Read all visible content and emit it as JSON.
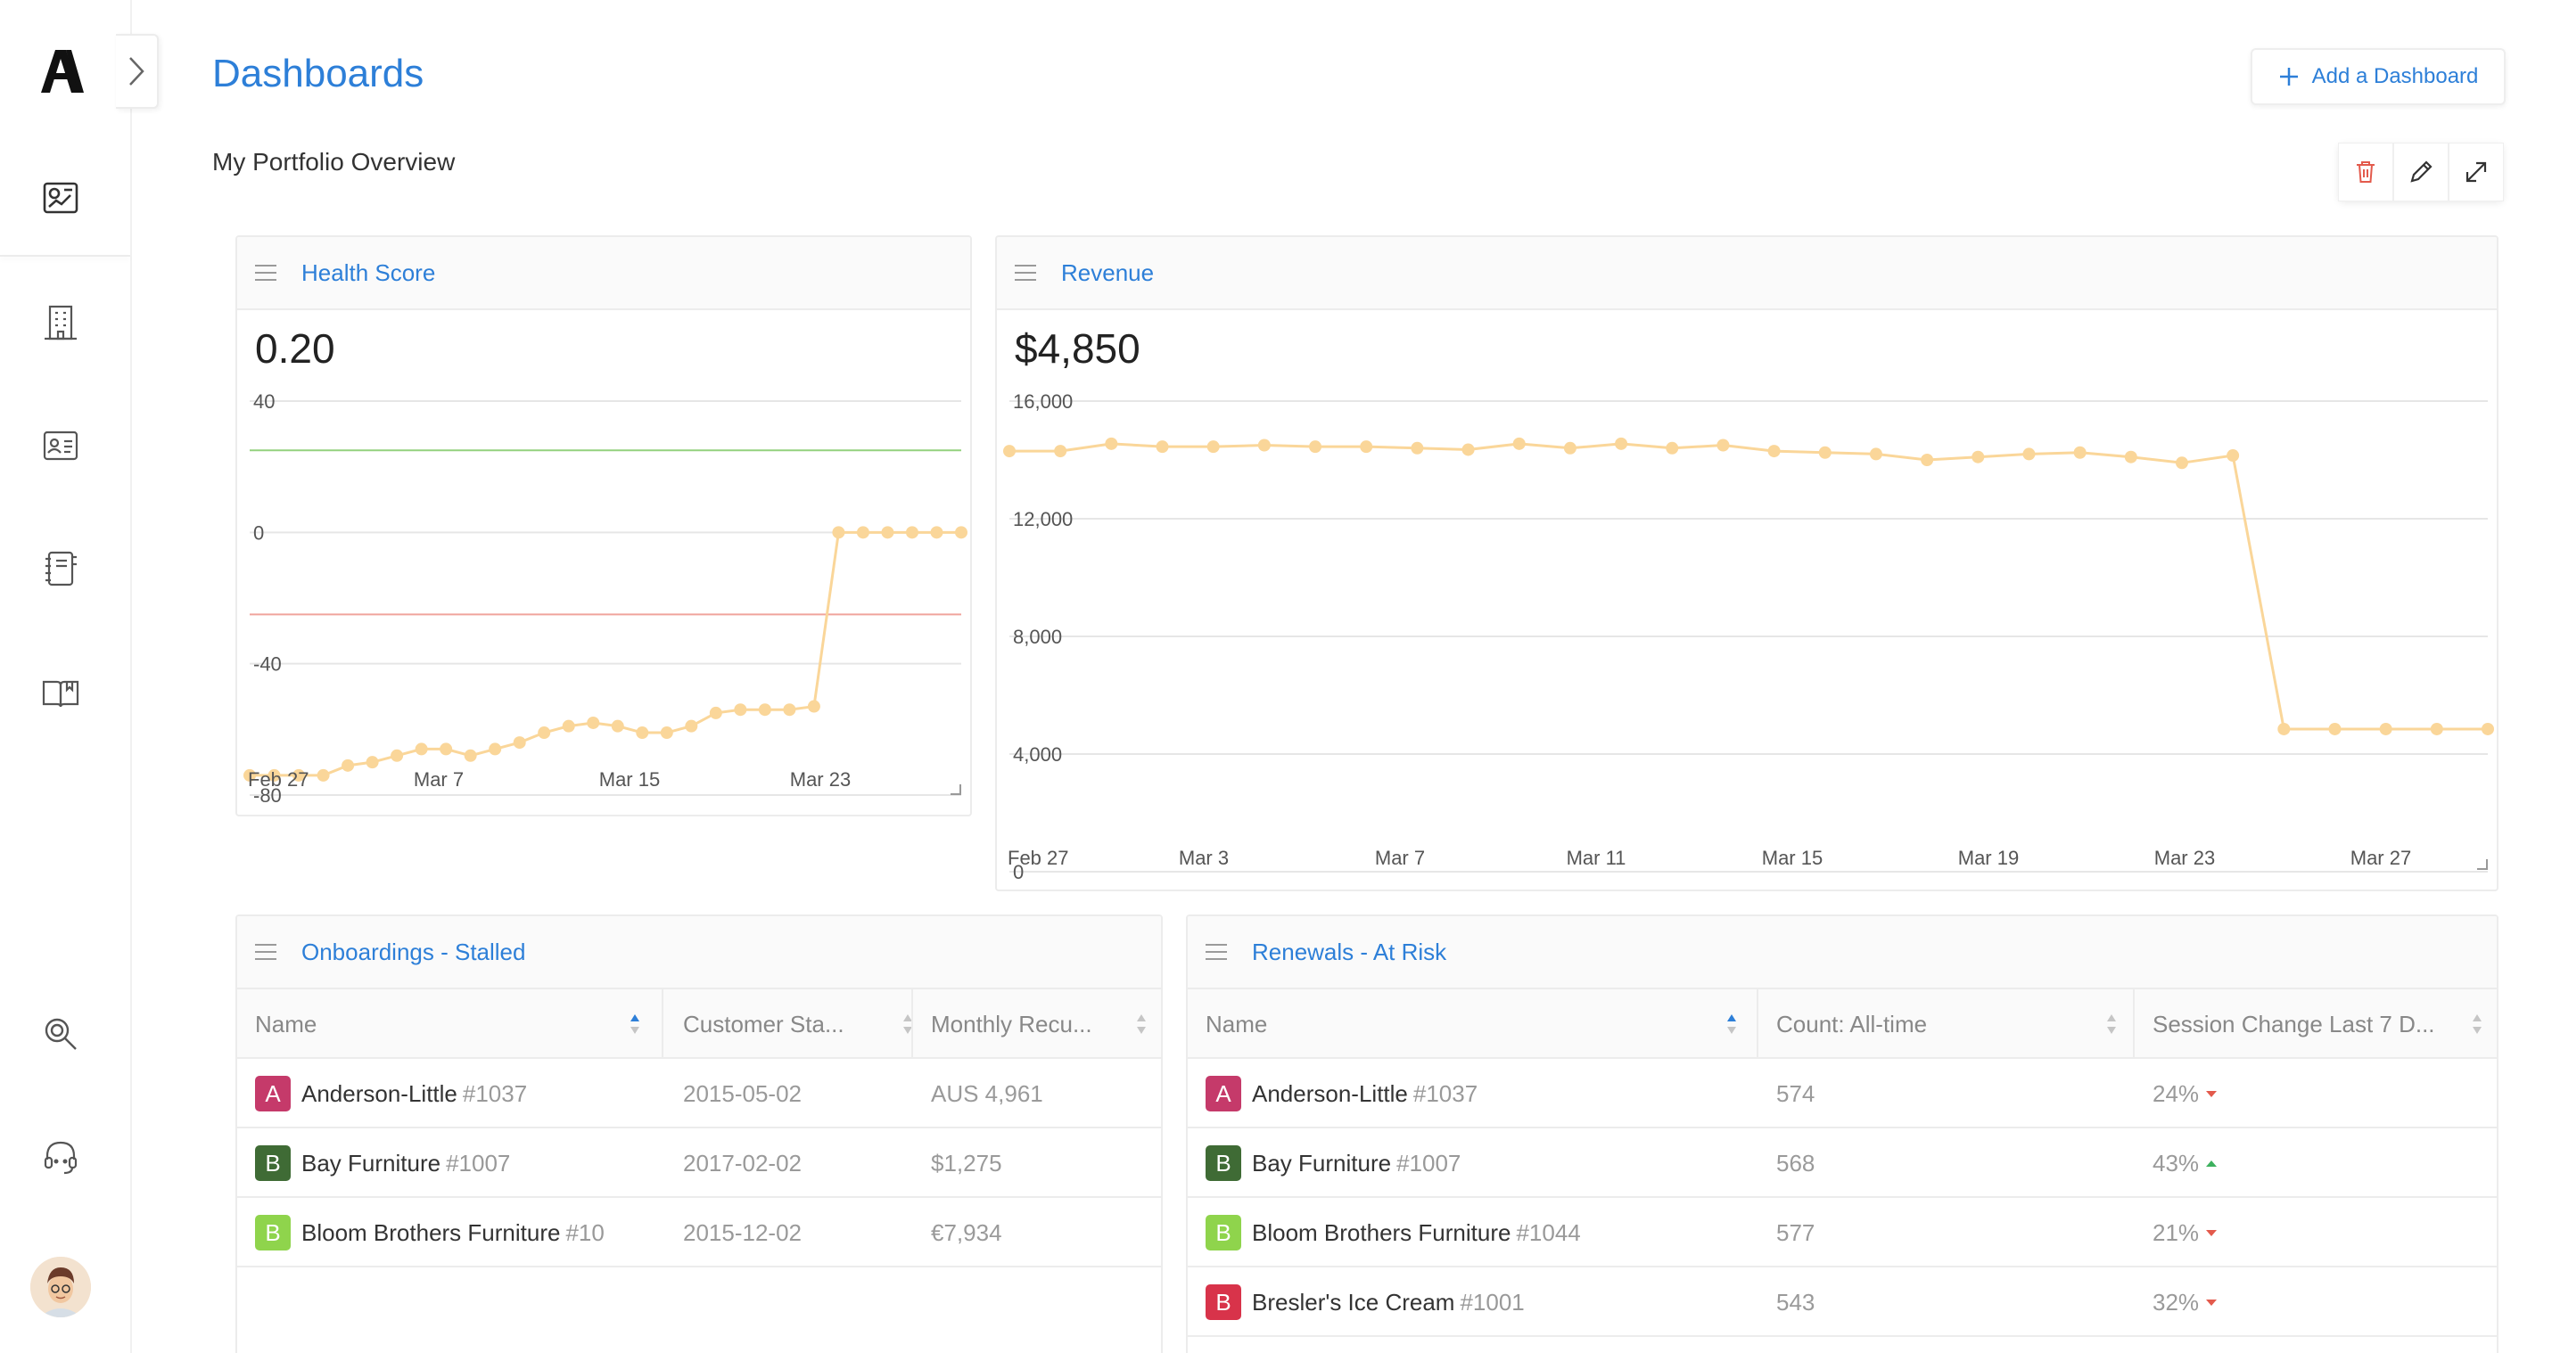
{
  "sidebar": {
    "logo": "letter-a-logo",
    "icons": [
      "dashboard-icon",
      "building-icon",
      "contact-card-icon",
      "notebook-icon",
      "book-icon",
      "search-icon",
      "support-headset-icon"
    ]
  },
  "header": {
    "title": "Dashboards",
    "add_button": "Add a Dashboard",
    "subtitle": "My Portfolio Overview"
  },
  "toolbar": {
    "icons": [
      "trash-icon",
      "pencil-icon",
      "expand-icon"
    ]
  },
  "colors": {
    "accent": "#2d7fd8",
    "line": "#fad699",
    "good_threshold": "#93d17e",
    "bad_threshold": "#f0a49c"
  },
  "health_card": {
    "title": "Health Score",
    "value": "0.20",
    "chart_data": {
      "type": "line",
      "x_ticks": [
        "Feb 27",
        "Mar 7",
        "Mar 15",
        "Mar 23"
      ],
      "y_ticks": [
        "40",
        "0",
        "-40",
        "-80"
      ],
      "ylim": [
        -80,
        40
      ],
      "thresholds": [
        25,
        -25
      ],
      "values": [
        -74,
        -74,
        -74,
        -74,
        -71,
        -70,
        -68,
        -66,
        -66,
        -68,
        -66,
        -64,
        -61,
        -59,
        -58,
        -59,
        -61,
        -61,
        -59,
        -55,
        -54,
        -54,
        -54,
        -53,
        0,
        0,
        0,
        0,
        0,
        0
      ]
    }
  },
  "revenue_card": {
    "title": "Revenue",
    "value": "$4,850",
    "chart_data": {
      "type": "line",
      "x_ticks": [
        "Feb 27",
        "Mar 3",
        "Mar 7",
        "Mar 11",
        "Mar 15",
        "Mar 19",
        "Mar 23",
        "Mar 27"
      ],
      "y_ticks": [
        "16,000",
        "12,000",
        "8,000",
        "4,000",
        "0"
      ],
      "ylim": [
        0,
        16000
      ],
      "values": [
        14300,
        14300,
        14550,
        14450,
        14450,
        14500,
        14450,
        14450,
        14400,
        14350,
        14550,
        14400,
        14550,
        14400,
        14500,
        14300,
        14250,
        14200,
        14000,
        14100,
        14200,
        14250,
        14100,
        13900,
        14150,
        4850,
        4850,
        4850,
        4850,
        4850
      ]
    }
  },
  "onboardings": {
    "title": "Onboardings - Stalled",
    "columns": [
      "Name",
      "Customer Sta...",
      "Monthly Recu..."
    ],
    "rows": [
      {
        "badge": "A",
        "color": "#c53a6a",
        "name": "Anderson-Little",
        "id": "#1037",
        "date": "2015-05-02",
        "amount": "AUS 4,961"
      },
      {
        "badge": "B",
        "color": "#3f6b35",
        "name": "Bay Furniture",
        "id": "#1007",
        "date": "2017-02-02",
        "amount": "$1,275"
      },
      {
        "badge": "B",
        "color": "#8fd44c",
        "name": "Bloom Brothers Furniture",
        "id": "#10",
        "date": "2015-12-02",
        "amount": "€7,934"
      }
    ]
  },
  "renewals": {
    "title": "Renewals - At Risk",
    "columns": [
      "Name",
      "Count: All-time",
      "Session Change Last 7 D..."
    ],
    "rows": [
      {
        "badge": "A",
        "color": "#c53a6a",
        "name": "Anderson-Little",
        "id": "#1037",
        "count": "574",
        "change": "24%",
        "trend": "down"
      },
      {
        "badge": "B",
        "color": "#3f6b35",
        "name": "Bay Furniture",
        "id": "#1007",
        "count": "568",
        "change": "43%",
        "trend": "up"
      },
      {
        "badge": "B",
        "color": "#8fd44c",
        "name": "Bloom Brothers Furniture",
        "id": "#1044",
        "count": "577",
        "change": "21%",
        "trend": "down"
      },
      {
        "badge": "B",
        "color": "#d8334a",
        "name": "Bresler's Ice Cream",
        "id": "#1001",
        "count": "543",
        "change": "32%",
        "trend": "down"
      }
    ]
  }
}
